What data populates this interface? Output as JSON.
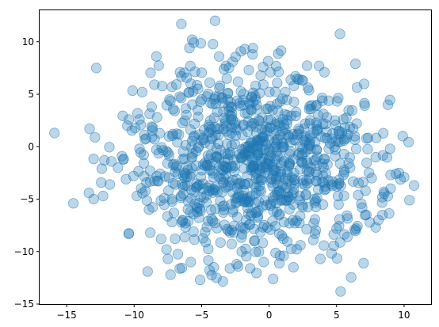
{
  "chart_data": {
    "type": "scatter",
    "title": "",
    "xlabel": "",
    "ylabel": "",
    "xlim": [
      -17,
      12
    ],
    "ylim": [
      -15,
      13
    ],
    "xticks": [
      -15,
      -10,
      -5,
      0,
      5,
      10
    ],
    "yticks": [
      -15,
      -10,
      -5,
      0,
      5,
      10
    ],
    "grid": false,
    "colors": {
      "marker": "#1f77b4",
      "marker_alpha": 0.3
    },
    "n_points": 1000,
    "distribution": {
      "center": [
        -1.0,
        -1.5
      ],
      "spread": [
        4.3,
        4.3
      ],
      "seed": 19
    },
    "points": [
      [
        -15.9,
        1.3
      ],
      [
        -14.5,
        -5.4
      ],
      [
        -13.0,
        -5.0
      ],
      [
        -12.8,
        7.5
      ],
      [
        -12.9,
        0.9
      ],
      [
        -12.3,
        -4.7
      ],
      [
        -12.4,
        -2.1
      ],
      [
        -12.2,
        -1.3
      ],
      [
        -11.8,
        -3.6
      ],
      [
        -11.2,
        -2.0
      ],
      [
        -10.9,
        -0.9
      ],
      [
        -10.8,
        -1.2
      ],
      [
        -10.6,
        -3.1
      ],
      [
        -10.5,
        2.0
      ],
      [
        -10.4,
        -8.3
      ],
      [
        -9.8,
        -4.7
      ],
      [
        -9.6,
        -0.2
      ],
      [
        -9.6,
        2.6
      ],
      [
        -9.4,
        5.2
      ],
      [
        -9.2,
        0.7
      ],
      [
        -9.0,
        -11.9
      ],
      [
        -8.9,
        -6.0
      ],
      [
        -8.8,
        -8.2
      ],
      [
        -8.7,
        3.8
      ],
      [
        -8.3,
        2.8
      ],
      [
        -8.2,
        -3.3
      ],
      [
        -8.0,
        -8.8
      ],
      [
        -7.6,
        -9.8
      ],
      [
        -7.5,
        -10.7
      ],
      [
        -7.3,
        -12.2
      ],
      [
        -7.2,
        5.7
      ],
      [
        -7.0,
        3.4
      ],
      [
        -6.9,
        -2.0
      ],
      [
        -6.6,
        7.1
      ],
      [
        -6.5,
        6.7
      ],
      [
        -6.5,
        11.7
      ],
      [
        -6.2,
        -7.3
      ],
      [
        -5.8,
        -11.0
      ],
      [
        -5.6,
        -8.1
      ],
      [
        -5.9,
        9.4
      ],
      [
        -5.7,
        10.2
      ],
      [
        -5.8,
        6.0
      ],
      [
        -5.4,
        -1.8
      ],
      [
        -5.0,
        4.5
      ],
      [
        -4.7,
        -9.1
      ],
      [
        -4.4,
        6.1
      ],
      [
        -4.1,
        -11.5
      ],
      [
        -4.0,
        12.0
      ],
      [
        -3.9,
        -12.5
      ],
      [
        -3.7,
        8.6
      ],
      [
        -3.5,
        4.7
      ],
      [
        -3.2,
        7.7
      ],
      [
        -2.9,
        -11.6
      ],
      [
        -2.7,
        8.1
      ],
      [
        -2.4,
        -11.2
      ],
      [
        -2.3,
        6.2
      ],
      [
        -2.1,
        -1.0
      ],
      [
        -1.8,
        9.3
      ],
      [
        -1.5,
        7.3
      ],
      [
        -1.4,
        -11.6
      ],
      [
        -1.2,
        9.4
      ],
      [
        -1.1,
        -9.0
      ],
      [
        -1.0,
        5.8
      ],
      [
        -0.8,
        -3.1
      ],
      [
        -0.7,
        5.1
      ],
      [
        -0.4,
        -11.0
      ],
      [
        -0.2,
        1.9
      ],
      [
        0.1,
        7.1
      ],
      [
        0.1,
        -5.6
      ],
      [
        0.3,
        -12.6
      ],
      [
        0.4,
        -2.2
      ],
      [
        0.6,
        4.1
      ],
      [
        0.8,
        -10.4
      ],
      [
        1.1,
        -7.2
      ],
      [
        1.2,
        5.2
      ],
      [
        1.5,
        -1.5
      ],
      [
        1.8,
        -11.5
      ],
      [
        2.0,
        3.3
      ],
      [
        2.3,
        -6.6
      ],
      [
        2.5,
        6.3
      ],
      [
        2.8,
        -2.3
      ],
      [
        3.1,
        3.6
      ],
      [
        3.4,
        -8.3
      ],
      [
        3.7,
        7.7
      ],
      [
        3.8,
        -10.7
      ],
      [
        4.1,
        7.1
      ],
      [
        4.3,
        0.8
      ],
      [
        4.6,
        -3.6
      ],
      [
        5.0,
        -7.8
      ],
      [
        5.3,
        -13.8
      ],
      [
        5.5,
        2.6
      ],
      [
        5.8,
        -8.6
      ],
      [
        6.0,
        -2.0
      ],
      [
        6.4,
        7.9
      ],
      [
        6.6,
        -4.6
      ],
      [
        7.0,
        -11.1
      ],
      [
        7.2,
        -6.5
      ],
      [
        7.6,
        -3.0
      ],
      [
        7.9,
        -1.0
      ],
      [
        7.9,
        -7.7
      ],
      [
        8.1,
        -7.0
      ],
      [
        8.5,
        -4.3
      ],
      [
        8.8,
        4.0
      ],
      [
        9.0,
        -2.7
      ],
      [
        9.0,
        -4.0
      ],
      [
        9.9,
        1.0
      ],
      [
        10.0,
        -2.9
      ],
      [
        10.4,
        -5.1
      ]
    ]
  }
}
